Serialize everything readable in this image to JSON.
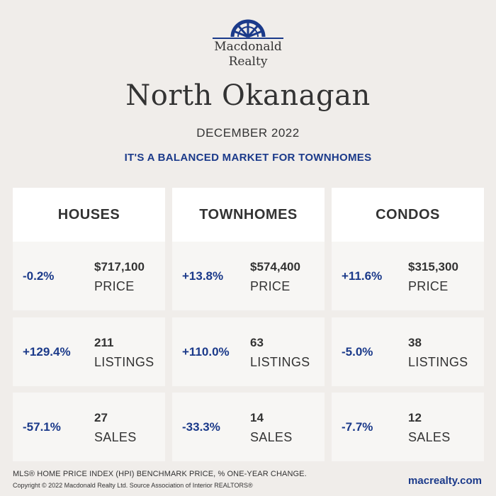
{
  "brand": {
    "name_line1": "Macdonald",
    "name_line2": "Realty",
    "logo_icon": "sunburst-arch-logo-icon",
    "accent_color": "#1b3a8a"
  },
  "header": {
    "title": "North Okanagan",
    "date": "DECEMBER 2022",
    "tagline": "IT'S A BALANCED MARKET FOR TOWNHOMES"
  },
  "columns": [
    {
      "heading": "HOUSES",
      "rows": [
        {
          "change": "-0.2%",
          "value": "$717,100",
          "metric": "PRICE"
        },
        {
          "change": "+129.4%",
          "value": "211",
          "metric": "LISTINGS"
        },
        {
          "change": "-57.1%",
          "value": "27",
          "metric": "SALES"
        }
      ]
    },
    {
      "heading": "TOWNHOMES",
      "rows": [
        {
          "change": "+13.8%",
          "value": "$574,400",
          "metric": "PRICE"
        },
        {
          "change": "+110.0%",
          "value": "63",
          "metric": "LISTINGS"
        },
        {
          "change": "-33.3%",
          "value": "14",
          "metric": "SALES"
        }
      ]
    },
    {
      "heading": "CONDOS",
      "rows": [
        {
          "change": "+11.6%",
          "value": "$315,300",
          "metric": "PRICE"
        },
        {
          "change": "-5.0%",
          "value": "38",
          "metric": "LISTINGS"
        },
        {
          "change": "-7.7%",
          "value": "12",
          "metric": "SALES"
        }
      ]
    }
  ],
  "footer": {
    "note": "MLS® HOME PRICE INDEX (HPI) BENCHMARK PRICE, % ONE-YEAR CHANGE.",
    "copyright": "Copyright © 2022 Macdonald Realty Ltd. Source Association of Interior REALTORS®",
    "website": "macrealty.com"
  }
}
